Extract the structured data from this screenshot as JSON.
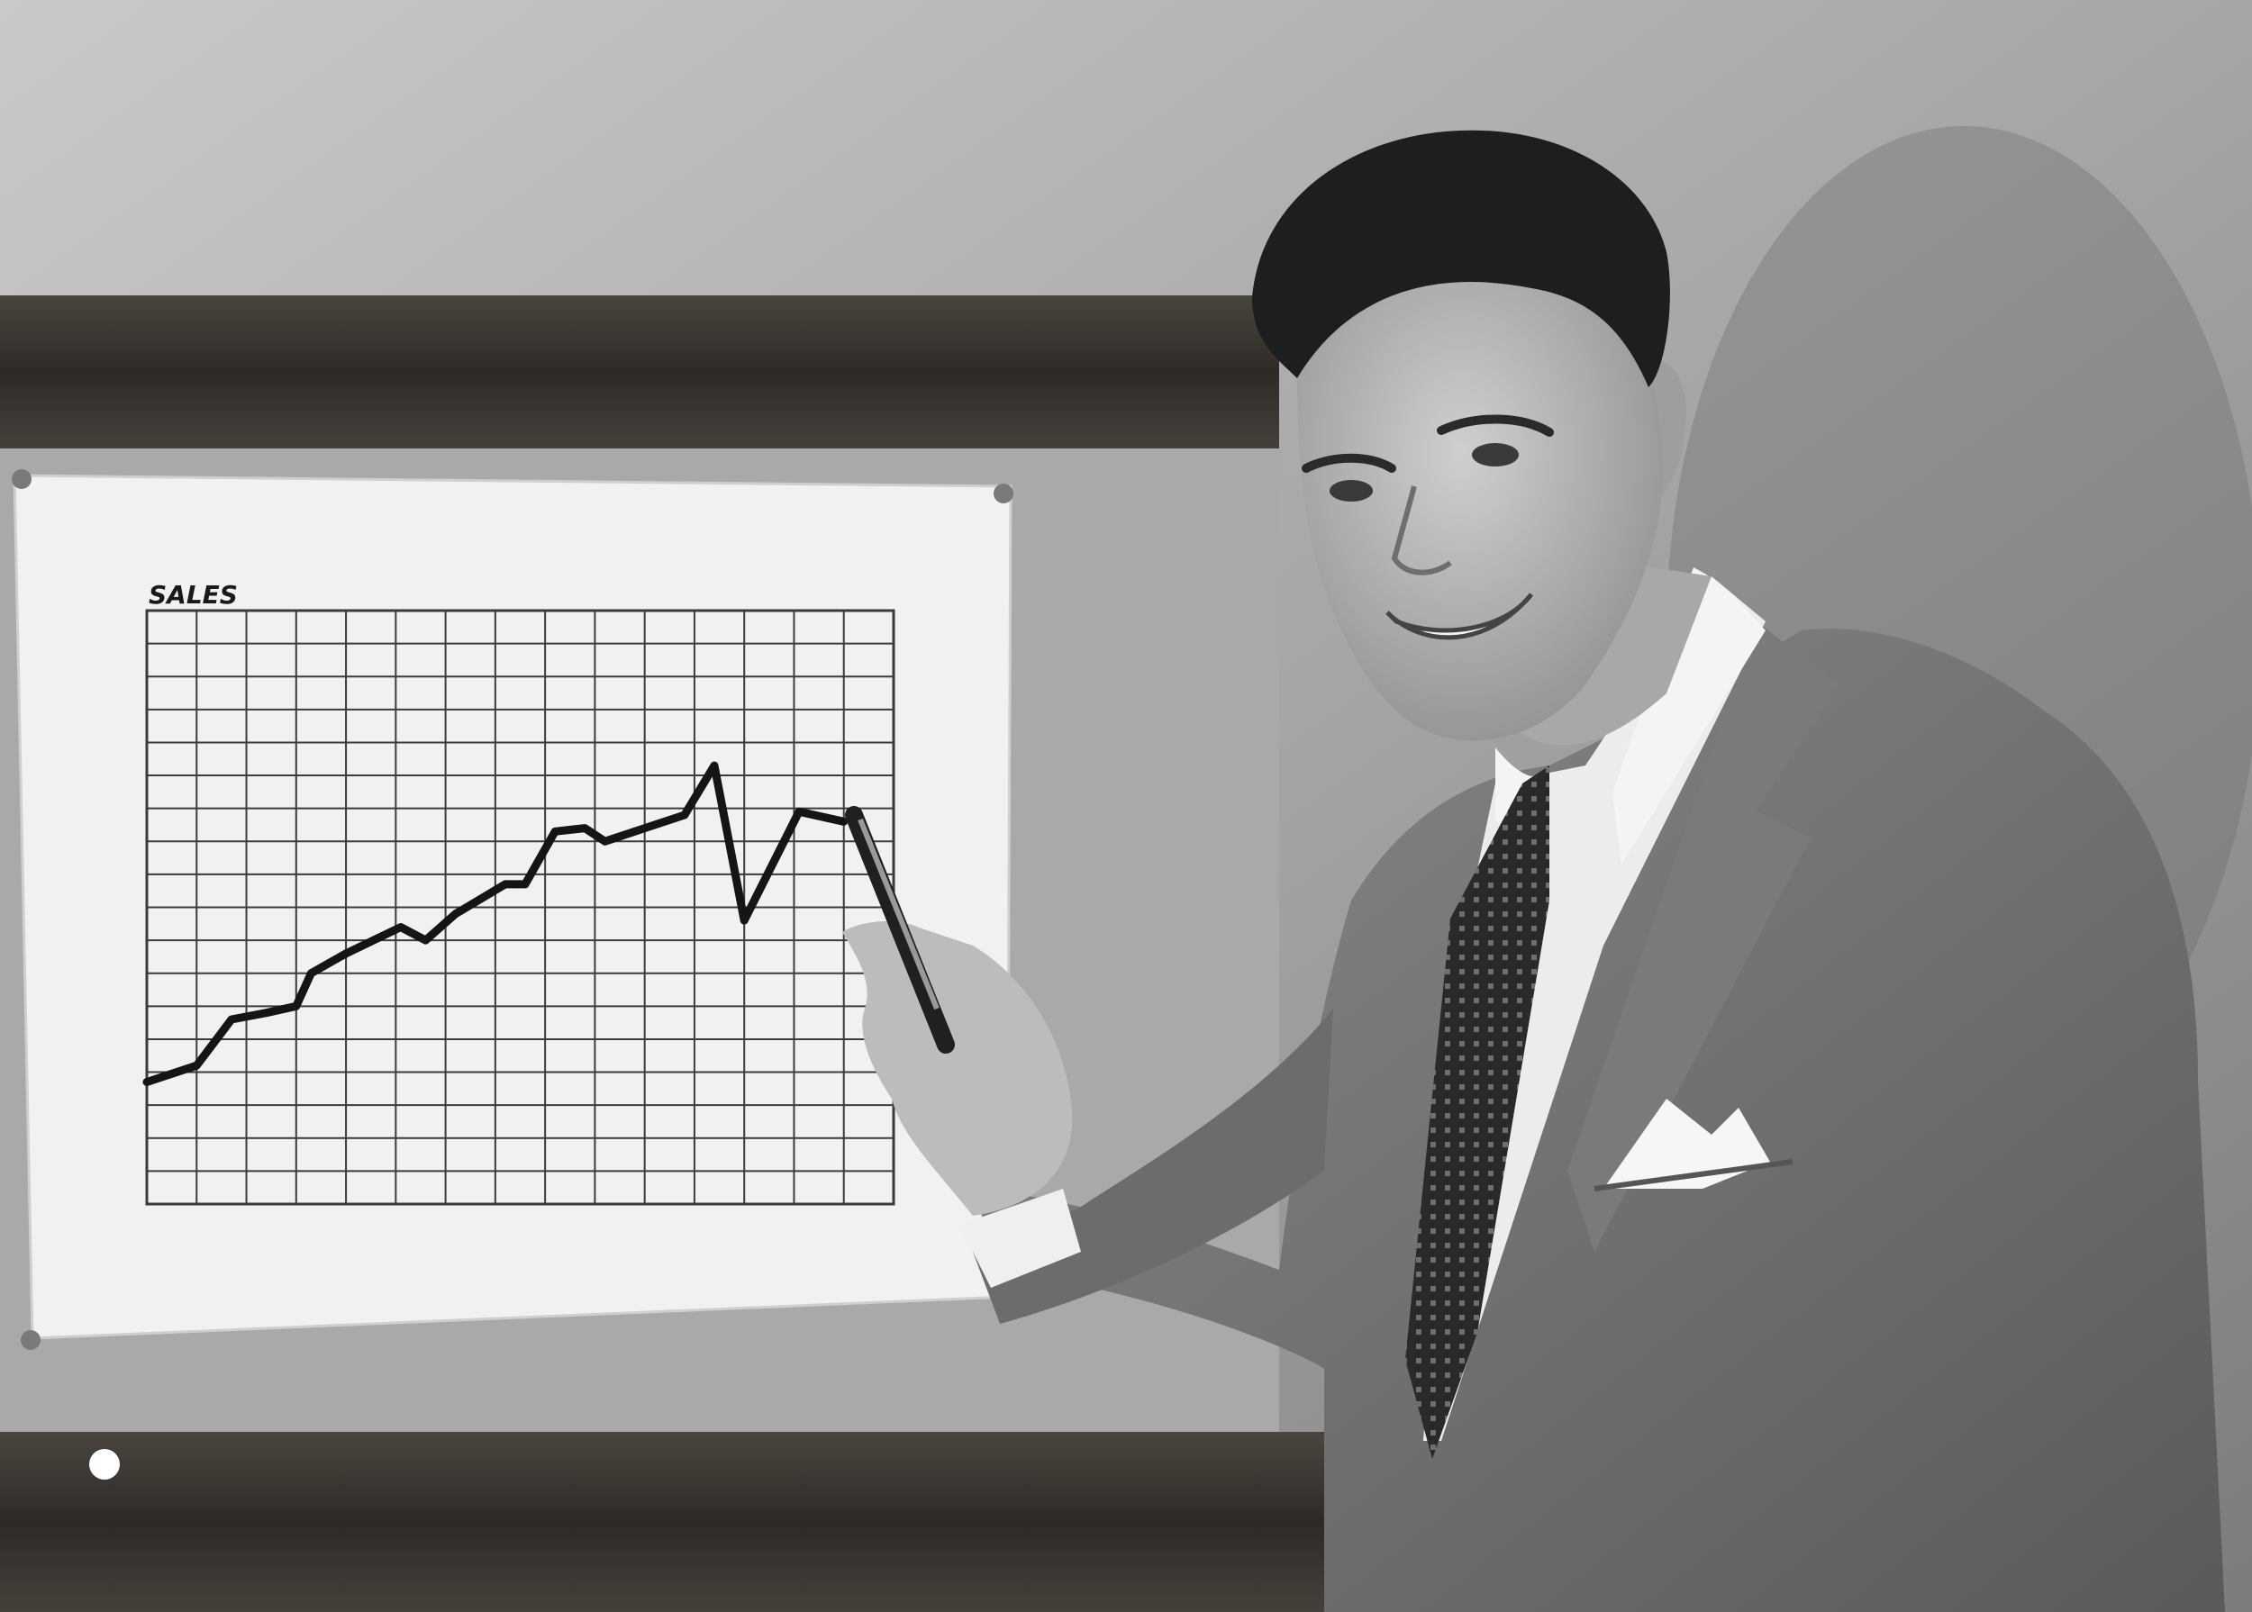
{
  "photo": {
    "style": "black-and-white",
    "colors": {
      "wall": "#9c9c9c",
      "wall_light": "#bdbdbd",
      "frame_wood": "#3a3631",
      "paper": "#f2f2f0",
      "grid_line": "#3b3b3b",
      "trend_line": "#151515",
      "suit": "#6f6f6f",
      "shirt": "#ececec",
      "tie": "#2b2b2b",
      "hair": "#1e1e1e",
      "skin": "#bcbcbc"
    }
  },
  "chart_data": {
    "type": "line",
    "title": "SALES",
    "xlabel": "",
    "ylabel": "",
    "grid": true,
    "grid_columns": 15,
    "grid_rows": 18,
    "xlim": [
      0,
      15
    ],
    "ylim": [
      0,
      18
    ],
    "x": [
      0,
      1,
      1.7,
      2.4,
      3,
      3.3,
      4,
      5.1,
      5.6,
      6.2,
      7.2,
      7.6,
      8.2,
      8.8,
      9.2,
      10,
      10.8,
      11.4,
      12,
      13.1,
      14
    ],
    "y": [
      3.7,
      4.2,
      5.6,
      5.8,
      6,
      7,
      7.6,
      8.4,
      8,
      8.8,
      9.7,
      9.7,
      11.3,
      11.4,
      11,
      11.4,
      11.8,
      13.3,
      8.6,
      11.9,
      11.6
    ]
  }
}
